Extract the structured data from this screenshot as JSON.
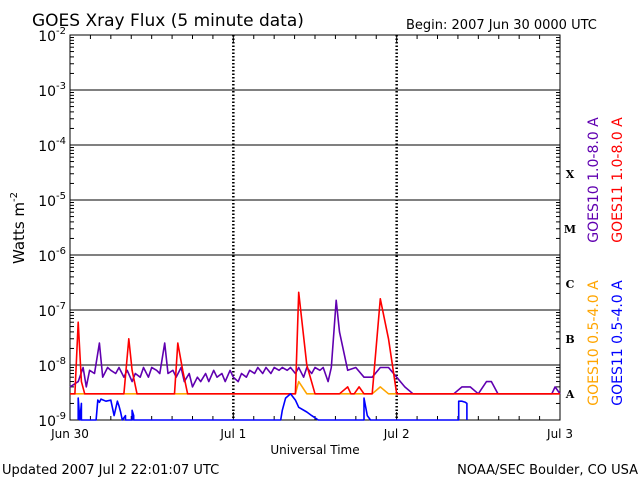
{
  "chart_data": {
    "type": "line",
    "title": "GOES Xray Flux (5 minute data)",
    "begin_label": "Begin:  2007 Jun 30 0000 UTC",
    "xlabel": "Universal Time",
    "ylabel_text": "Watts m",
    "ylabel_sup": "-2",
    "yscale": "log",
    "ylim": [
      1e-09,
      0.01
    ],
    "xlim": [
      0,
      3
    ],
    "x_unit": "days since 2007 Jun 30 0000 UTC",
    "x_ticks": [
      {
        "x": 0,
        "label": "Jun 30"
      },
      {
        "x": 1,
        "label": "Jul 1"
      },
      {
        "x": 2,
        "label": "Jul 2"
      },
      {
        "x": 3,
        "label": "Jul 3"
      }
    ],
    "y_ticks": [
      {
        "exp": -9,
        "base": "10",
        "sup": "-9"
      },
      {
        "exp": -8,
        "base": "10",
        "sup": "-8"
      },
      {
        "exp": -7,
        "base": "10",
        "sup": "-7"
      },
      {
        "exp": -6,
        "base": "10",
        "sup": "-6"
      },
      {
        "exp": -5,
        "base": "10",
        "sup": "-5"
      },
      {
        "exp": -4,
        "base": "10",
        "sup": "-4"
      },
      {
        "exp": -3,
        "base": "10",
        "sup": "-3"
      },
      {
        "exp": -2,
        "base": "10",
        "sup": "-2"
      }
    ],
    "flare_classes": [
      {
        "label": "X",
        "exp": -4
      },
      {
        "label": "M",
        "exp": -5
      },
      {
        "label": "C",
        "exp": -6
      },
      {
        "label": "B",
        "exp": -7
      },
      {
        "label": "A",
        "exp": -8
      }
    ],
    "grid": true,
    "legend_position": "right, rotated vertical",
    "series": [
      {
        "name": "GOES10 1.0-8.0 A",
        "color": "#6000b0",
        "x": [
          0.0,
          0.05,
          0.08,
          0.1,
          0.12,
          0.15,
          0.18,
          0.2,
          0.23,
          0.25,
          0.28,
          0.3,
          0.33,
          0.35,
          0.38,
          0.4,
          0.43,
          0.45,
          0.48,
          0.5,
          0.53,
          0.55,
          0.58,
          0.6,
          0.63,
          0.65,
          0.68,
          0.7,
          0.73,
          0.75,
          0.78,
          0.8,
          0.83,
          0.85,
          0.88,
          0.9,
          0.93,
          0.95,
          0.98,
          1.0,
          1.03,
          1.05,
          1.08,
          1.1,
          1.13,
          1.15,
          1.18,
          1.2,
          1.23,
          1.25,
          1.28,
          1.3,
          1.33,
          1.35,
          1.38,
          1.4,
          1.43,
          1.45,
          1.48,
          1.5,
          1.53,
          1.55,
          1.58,
          1.6,
          1.63,
          1.65,
          1.7,
          1.75,
          1.8,
          1.85,
          1.9,
          1.95,
          2.0,
          2.05,
          2.1,
          2.15,
          2.2,
          2.25,
          2.3,
          2.35,
          2.4,
          2.45,
          2.5,
          2.55,
          2.58,
          2.62,
          2.7,
          2.8,
          2.9,
          2.95,
          2.97,
          3.0
        ],
        "y": [
          4e-09,
          5e-09,
          9e-09,
          4e-09,
          8e-09,
          7e-09,
          2.5e-08,
          6e-09,
          9e-09,
          8e-09,
          7e-09,
          9e-09,
          6e-09,
          8e-09,
          5e-09,
          7e-09,
          6e-09,
          9e-09,
          6e-09,
          9e-09,
          8e-09,
          7e-09,
          2.5e-08,
          7e-09,
          8e-09,
          6e-09,
          9e-09,
          5e-09,
          7e-09,
          4e-09,
          6e-09,
          5e-09,
          7e-09,
          5e-09,
          8e-09,
          6e-09,
          7e-09,
          5e-09,
          8e-09,
          6e-09,
          5e-09,
          7e-09,
          6e-09,
          8e-09,
          7e-09,
          9e-09,
          7e-09,
          9e-09,
          7e-09,
          9e-09,
          8e-09,
          9e-09,
          8e-09,
          9e-09,
          7e-09,
          9e-09,
          6e-09,
          9e-09,
          7e-09,
          9e-09,
          8e-09,
          9e-09,
          5e-09,
          9e-09,
          1.5e-07,
          4e-08,
          8e-09,
          9e-09,
          6e-09,
          6e-09,
          9e-09,
          9e-09,
          6e-09,
          4e-09,
          3e-09,
          3e-09,
          3e-09,
          3e-09,
          3e-09,
          3e-09,
          4e-09,
          4e-09,
          3e-09,
          5e-09,
          5e-09,
          3e-09,
          3e-09,
          3e-09,
          3e-09,
          3e-09,
          4e-09,
          3e-09
        ]
      },
      {
        "name": "GOES11 1.0-8.0 A",
        "color": "#ff0000",
        "x": [
          0.0,
          0.03,
          0.05,
          0.07,
          0.09,
          0.12,
          0.15,
          0.2,
          0.25,
          0.3,
          0.33,
          0.36,
          0.38,
          0.41,
          0.45,
          0.5,
          0.55,
          0.6,
          0.64,
          0.66,
          0.69,
          0.72,
          0.75,
          0.8,
          0.85,
          0.9,
          0.95,
          1.0,
          1.05,
          1.1,
          1.15,
          1.2,
          1.25,
          1.3,
          1.32,
          1.34,
          1.36,
          1.38,
          1.4,
          1.45,
          1.5,
          1.55,
          1.6,
          1.65,
          1.7,
          1.72,
          1.74,
          1.77,
          1.8,
          1.85,
          1.9,
          1.95,
          2.0,
          2.05,
          2.1,
          2.2,
          2.3,
          2.4,
          2.5,
          2.6,
          2.7,
          2.8,
          2.9,
          3.0
        ],
        "y": [
          3e-09,
          3e-09,
          6e-08,
          5e-09,
          3e-09,
          3e-09,
          3e-09,
          3e-09,
          3e-09,
          3e-09,
          3e-09,
          3e-08,
          8e-09,
          3e-09,
          3e-09,
          3e-09,
          3e-09,
          3e-09,
          3e-09,
          2.5e-08,
          8e-09,
          3e-09,
          3e-09,
          3e-09,
          3e-09,
          3e-09,
          3e-09,
          3e-09,
          3e-09,
          3e-09,
          3e-09,
          3e-09,
          3e-09,
          3e-09,
          3e-09,
          3e-09,
          3e-09,
          3e-09,
          2.1e-07,
          1e-08,
          3e-09,
          3e-09,
          3e-09,
          3e-09,
          4e-09,
          3e-09,
          3e-09,
          4e-09,
          3e-09,
          3e-09,
          1.6e-07,
          3e-08,
          3e-09,
          3e-09,
          3e-09,
          3e-09,
          3e-09,
          3e-09,
          3e-09,
          3e-09,
          3e-09,
          3e-09,
          3e-09,
          3e-09
        ]
      },
      {
        "name": "GOES10 0.5-4.0 A",
        "color": "#ffa500",
        "x": [
          0.0,
          0.5,
          0.9,
          1.0,
          1.1,
          1.2,
          1.3,
          1.32,
          1.38,
          1.4,
          1.45,
          1.5,
          1.8,
          1.85,
          1.9,
          1.95,
          2.0,
          2.5,
          3.0
        ],
        "y": [
          3e-09,
          3e-09,
          3e-09,
          3e-09,
          3e-09,
          3e-09,
          3e-09,
          3e-09,
          3e-09,
          5e-09,
          3e-09,
          3e-09,
          3e-09,
          3e-09,
          4e-09,
          3e-09,
          3e-09,
          3e-09,
          3e-09
        ]
      },
      {
        "name": "GOES11 0.5-4.0 A",
        "color": "#0000ff",
        "x": [
          0.05,
          0.05,
          0.06,
          0.07,
          0.07,
          0.09,
          0.09,
          0.16,
          0.17,
          0.18,
          0.19,
          0.22,
          0.25,
          0.27,
          0.29,
          0.3,
          0.31,
          0.32,
          0.34,
          0.34,
          0.38,
          0.38,
          0.39,
          0.39,
          1.29,
          1.3,
          1.32,
          1.35,
          1.38,
          1.4,
          1.45,
          1.48,
          1.52,
          1.54,
          1.54,
          1.8,
          1.8,
          1.82,
          1.84,
          1.86,
          2.38,
          2.38,
          2.4,
          2.42,
          2.43,
          2.43
        ],
        "y": [
          8e-10,
          2.5e-09,
          1e-09,
          2e-09,
          8e-10,
          8e-10,
          8e-10,
          8e-10,
          2.3e-09,
          2.1e-09,
          2.4e-09,
          2.2e-09,
          2.3e-09,
          1.2e-09,
          2.2e-09,
          1.8e-09,
          1.4e-09,
          1e-09,
          1.2e-09,
          8e-10,
          8e-10,
          1.5e-09,
          1.2e-09,
          8e-10,
          8e-10,
          1.5e-09,
          2.5e-09,
          3e-09,
          2.3e-09,
          1.7e-09,
          1.4e-09,
          1.2e-09,
          1e-09,
          1e-09,
          8e-10,
          8e-10,
          2.5e-09,
          1.2e-09,
          1e-09,
          8e-10,
          8e-10,
          2.2e-09,
          2.2e-09,
          2.1e-09,
          2e-09,
          8e-10
        ]
      }
    ]
  },
  "footer": {
    "updated": "Updated 2007 Jul  2 22:01:07 UTC",
    "credit": "NOAA/SEC Boulder, CO USA"
  }
}
